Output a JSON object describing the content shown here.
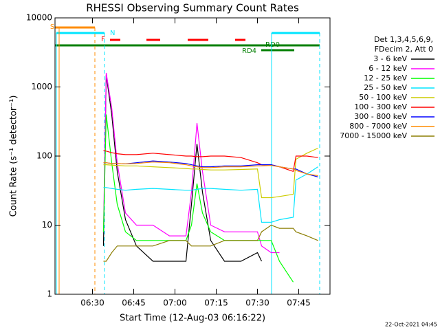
{
  "chart_data": {
    "type": "line",
    "title": "RHESSI Observing Summary Count Rates",
    "xlabel": "Start Time (12-Aug-03 06:16:22)",
    "ylabel": "Count Rate (s⁻¹ detector⁻¹)",
    "footer": "22-Oct-2021 04:45",
    "legend_title": [
      "Det 1,3,4,5,6,9,",
      "FDecim 2, Att 0"
    ],
    "annotations": [
      "S",
      "N",
      "F",
      "RD0",
      "RD4"
    ],
    "log_y": true,
    "xlim": [
      376.37,
      476.37
    ],
    "xticks": [
      {
        "value": 390,
        "label": "06:30"
      },
      {
        "value": 405,
        "label": "06:45"
      },
      {
        "value": 420,
        "label": "07:00"
      },
      {
        "value": 435,
        "label": "07:15"
      },
      {
        "value": 450,
        "label": "07:30"
      },
      {
        "value": 465,
        "label": "07:45"
      }
    ],
    "ylim": [
      1,
      10000
    ],
    "yticks": [
      1,
      10,
      100,
      1000,
      10000
    ],
    "x": [
      394,
      395,
      397,
      399,
      402,
      406,
      412,
      418,
      424,
      426,
      428,
      430,
      433,
      438,
      444,
      450,
      451.5,
      455,
      458,
      463,
      464,
      468,
      472
    ],
    "series": [
      {
        "name": "3 - 6 keV",
        "color": "#000000",
        "values": [
          5,
          1500,
          400,
          60,
          12,
          5,
          3,
          3,
          3,
          20,
          150,
          30,
          6,
          3,
          3,
          4,
          3,
          null,
          null,
          null,
          null,
          null,
          null
        ]
      },
      {
        "name": "6 - 12 keV",
        "color": "#ff00ff",
        "values": [
          8,
          1600,
          500,
          80,
          15,
          10,
          10,
          7,
          7,
          30,
          300,
          60,
          10,
          8,
          8,
          8,
          5,
          4,
          4,
          null,
          null,
          null,
          null
        ]
      },
      {
        "name": "12 - 25 keV",
        "color": "#00ff00",
        "values": [
          8,
          400,
          80,
          20,
          8,
          6,
          6,
          6,
          6,
          10,
          40,
          15,
          8,
          6,
          6,
          6,
          6,
          6,
          3,
          1.5,
          null,
          null,
          null
        ]
      },
      {
        "name": "25 - 50 keV",
        "color": "#00e5ff",
        "values": [
          35,
          35,
          34,
          33,
          32,
          33,
          34,
          33,
          32,
          32,
          33,
          34,
          34,
          33,
          32,
          33,
          11,
          11,
          12,
          13,
          45,
          55,
          70
        ]
      },
      {
        "name": "50 - 100 keV",
        "color": "#cccc00",
        "values": [
          75,
          75,
          74,
          73,
          72,
          72,
          70,
          68,
          66,
          65,
          65,
          64,
          63,
          63,
          64,
          65,
          25,
          25,
          26,
          28,
          90,
          110,
          130
        ]
      },
      {
        "name": "100 - 300 keV",
        "color": "#ff0000",
        "values": [
          120,
          118,
          112,
          108,
          105,
          105,
          110,
          105,
          100,
          100,
          98,
          98,
          100,
          100,
          95,
          80,
          75,
          75,
          70,
          60,
          100,
          100,
          95
        ]
      },
      {
        "name": "300 - 800 keV",
        "color": "#0000ff",
        "values": [
          80,
          80,
          78,
          78,
          77,
          80,
          85,
          82,
          78,
          75,
          72,
          70,
          70,
          72,
          72,
          75,
          75,
          75,
          70,
          65,
          65,
          55,
          50
        ]
      },
      {
        "name": "800 - 7000 keV",
        "color": "#ff8c00",
        "values": [
          80,
          80,
          78,
          78,
          77,
          78,
          82,
          80,
          75,
          72,
          70,
          68,
          68,
          70,
          70,
          72,
          72,
          73,
          70,
          65,
          62,
          55,
          52
        ]
      },
      {
        "name": "7000 - 15000 keV",
        "color": "#8b7d00",
        "values": [
          3,
          3,
          4,
          5,
          5,
          5,
          5,
          6,
          6,
          5,
          5,
          5,
          5,
          6,
          6,
          6,
          8,
          10,
          9,
          9,
          8,
          7,
          6
        ]
      }
    ]
  }
}
